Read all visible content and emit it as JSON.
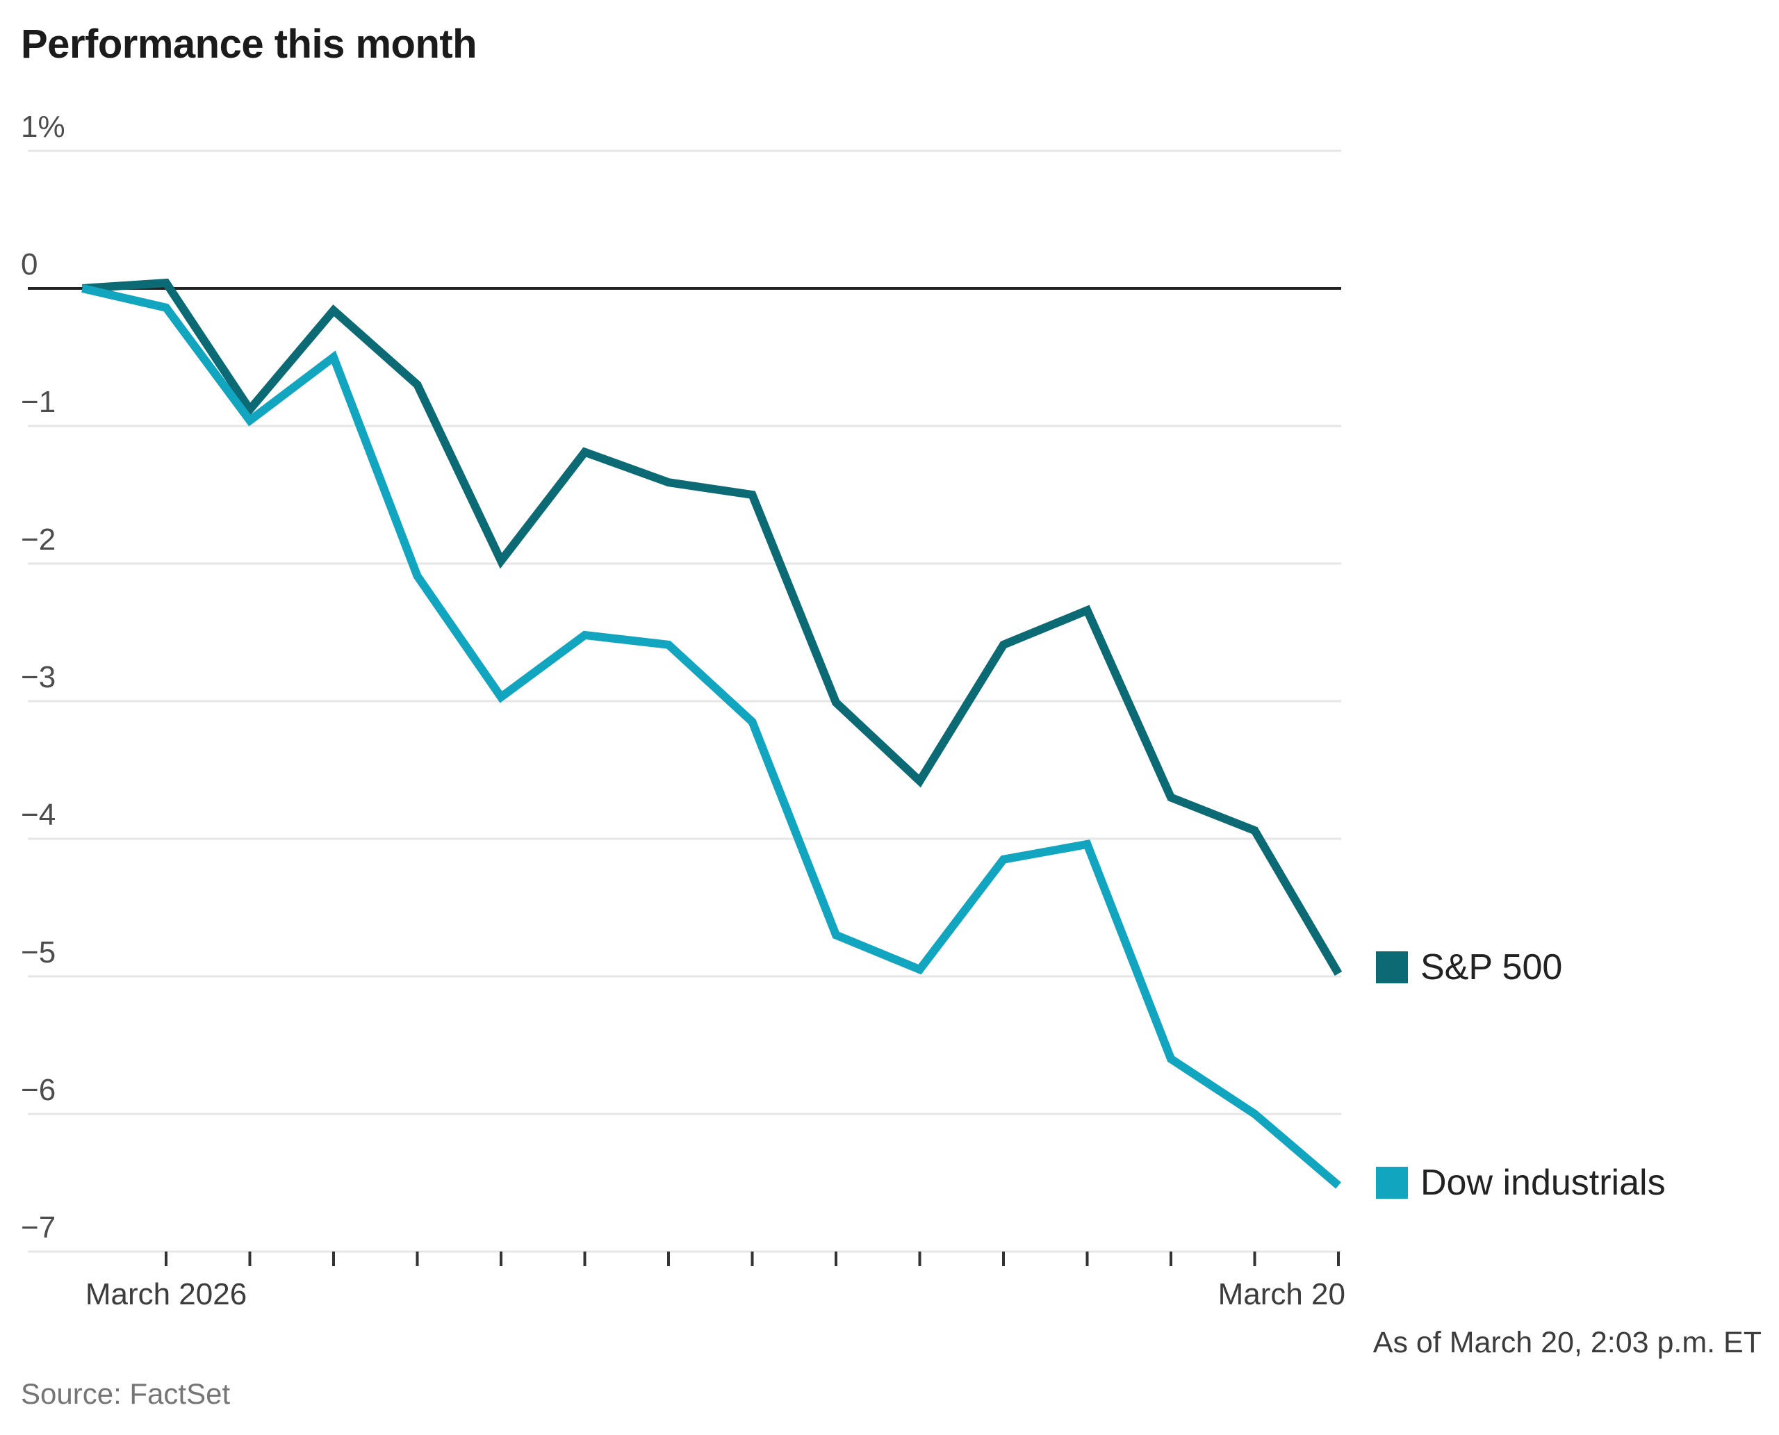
{
  "chart_data": {
    "type": "line",
    "title": "Performance this month",
    "note": "As of March 20, 2:03 p.m. ET",
    "source": "Source: FactSet",
    "x_axis": {
      "start_label": "March 2026",
      "end_label": "March 20",
      "tick_count": 15
    },
    "y_axis": {
      "unit": "%",
      "ylim": [
        -7,
        1
      ],
      "tick_labels": [
        "1%",
        "0",
        "−1",
        "−2",
        "−3",
        "−4",
        "−5",
        "−6",
        "−7"
      ],
      "tick_values": [
        1,
        0,
        -1,
        -2,
        -3,
        -4,
        -5,
        -6,
        -7
      ],
      "grid": "on"
    },
    "legend_position": "right",
    "grid_color": "#e6e6e6",
    "zero_line_color": "#222222",
    "tick_color": "#333333",
    "series": [
      {
        "name": "S&P 500",
        "color": "#0c6a75",
        "values": [
          0,
          0.04,
          -0.88,
          -0.16,
          -0.7,
          -1.98,
          -1.19,
          -1.41,
          -1.5,
          -3.01,
          -3.58,
          -2.59,
          -2.34,
          -3.7,
          -3.94,
          -4.98
        ]
      },
      {
        "name": "Dow industrials",
        "color": "#11a5c0",
        "values": [
          0,
          -0.14,
          -0.96,
          -0.5,
          -2.09,
          -2.97,
          -2.52,
          -2.59,
          -3.15,
          -4.7,
          -4.95,
          -4.15,
          -4.04,
          -5.6,
          -6.0,
          -6.52
        ]
      }
    ]
  }
}
